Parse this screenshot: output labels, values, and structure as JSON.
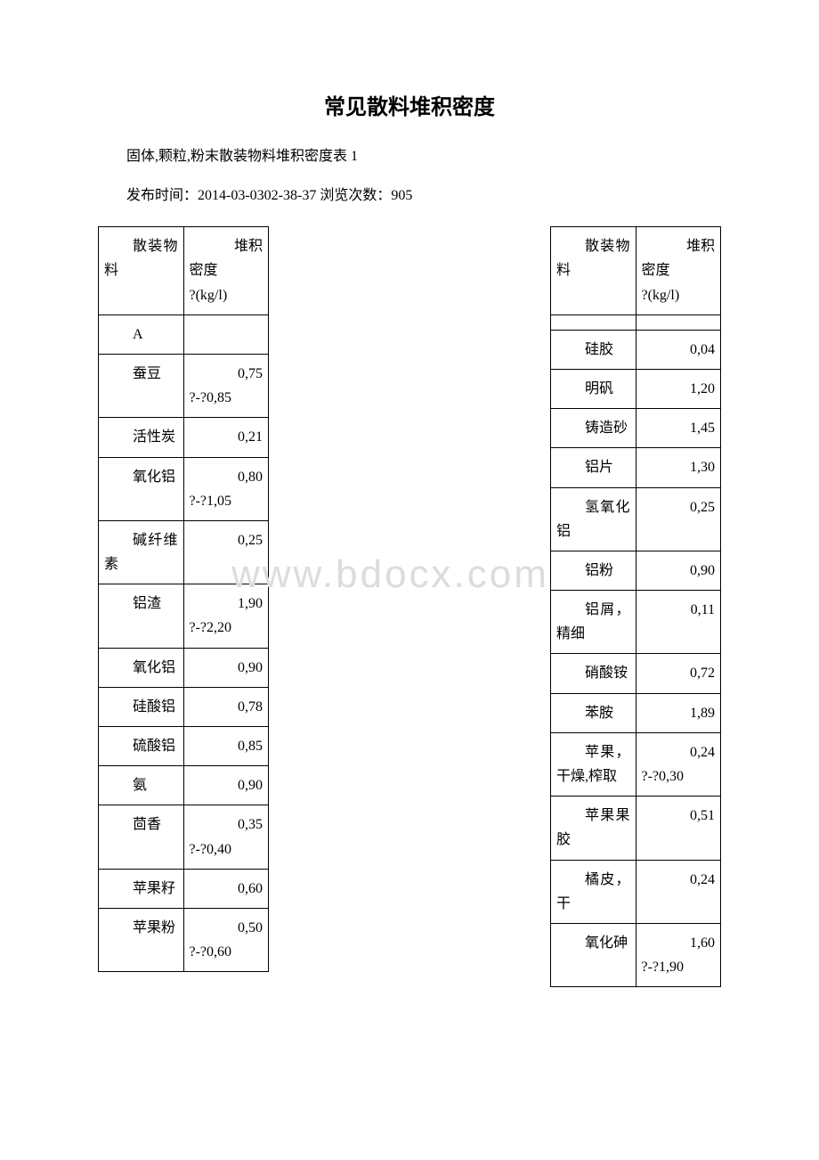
{
  "title": "常见散料堆积密度",
  "subtitle": "固体,颗粒,粉末散装物料堆积密度表 1",
  "meta": "发布时间：2014-03-0302-38-37 浏览次数：905",
  "watermark": "www.bdocx.com",
  "left_table": {
    "header": {
      "col1": "散装物料",
      "col2_line1": "堆积",
      "col2_line2": "密度",
      "col2_line3": "?(kg/l)"
    },
    "rows": [
      {
        "mat": "A",
        "val": ""
      },
      {
        "mat": "蚕豆",
        "val": "0,75",
        "val2": "?-?0,85"
      },
      {
        "mat": "活性炭",
        "val": "0,21"
      },
      {
        "mat": "氧化铝",
        "val": "0,80",
        "val2": "?-?1,05"
      },
      {
        "mat": "碱纤维素",
        "val": "0,25"
      },
      {
        "mat": "铝渣",
        "val": "1,90",
        "val2": "?-?2,20"
      },
      {
        "mat": "氧化铝",
        "val": "0,90"
      },
      {
        "mat": "硅酸铝",
        "val": "0,78"
      },
      {
        "mat": "硫酸铝",
        "val": "0,85"
      },
      {
        "mat": "氨",
        "val": "0,90"
      },
      {
        "mat": "茴香",
        "val": "0,35",
        "val2": "?-?0,40"
      },
      {
        "mat": "苹果籽",
        "val": "0,60"
      },
      {
        "mat": "苹果粉",
        "val": "0,50",
        "val2": "?-?0,60"
      }
    ]
  },
  "right_table": {
    "header": {
      "col1": "散装物料",
      "col2_line1": "堆积",
      "col2_line2": "密度",
      "col2_line3": "?(kg/l)"
    },
    "rows": [
      {
        "mat": "",
        "val": ""
      },
      {
        "mat": "硅胶",
        "val": "0,04"
      },
      {
        "mat": "明矾",
        "val": "1,20"
      },
      {
        "mat": "铸造砂",
        "val": "1,45"
      },
      {
        "mat": "铝片",
        "val": "1,30"
      },
      {
        "mat": "氢氧化铝",
        "val": "0,25"
      },
      {
        "mat": "铝粉",
        "val": "0,90"
      },
      {
        "mat": "铝屑，精细",
        "val": "0,11"
      },
      {
        "mat": "硝酸铵",
        "val": "0,72"
      },
      {
        "mat": "苯胺",
        "val": "1,89"
      },
      {
        "mat": "苹果，干燥,榨取",
        "val": "0,24",
        "val2": "?-?0,30"
      },
      {
        "mat": "苹果果胶",
        "val": "0,51"
      },
      {
        "mat": "橘皮，干",
        "val": "0,24"
      },
      {
        "mat": "氧化砷",
        "val": "1,60",
        "val2": "?-?1,90"
      }
    ]
  }
}
